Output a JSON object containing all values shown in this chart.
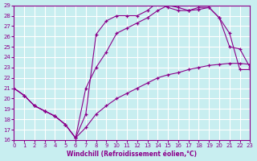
{
  "xlabel": "Windchill (Refroidissement éolien,°C)",
  "ylabel": "",
  "bg_color": "#c8eef0",
  "grid_color": "#ffffff",
  "line_color": "#8b008b",
  "xlim": [
    0,
    23
  ],
  "ylim": [
    16,
    29
  ],
  "xticks": [
    0,
    1,
    2,
    3,
    4,
    5,
    6,
    7,
    8,
    9,
    10,
    11,
    12,
    13,
    14,
    15,
    16,
    17,
    18,
    19,
    20,
    21,
    22,
    23
  ],
  "yticks": [
    16,
    17,
    18,
    19,
    20,
    21,
    22,
    23,
    24,
    25,
    26,
    27,
    28,
    29
  ],
  "line1_x": [
    0,
    1,
    2,
    3,
    4,
    5,
    6,
    7,
    8,
    9,
    10,
    11,
    12,
    13,
    14,
    15,
    16,
    17,
    18,
    19,
    20,
    21,
    22,
    23
  ],
  "line1_y": [
    21.0,
    20.3,
    19.3,
    18.8,
    18.3,
    17.5,
    16.2,
    17.2,
    18.5,
    19.3,
    20.0,
    20.5,
    21.0,
    21.5,
    22.0,
    22.3,
    22.5,
    22.8,
    23.0,
    23.2,
    23.3,
    23.4,
    23.4,
    23.3
  ],
  "line2_x": [
    0,
    1,
    2,
    3,
    4,
    5,
    6,
    7,
    8,
    9,
    10,
    11,
    12,
    13,
    14,
    15,
    16,
    17,
    18,
    19,
    20,
    21,
    22,
    23
  ],
  "line2_y": [
    21.0,
    20.3,
    19.3,
    18.8,
    18.3,
    17.5,
    16.2,
    18.5,
    26.2,
    27.5,
    28.0,
    28.0,
    28.0,
    28.5,
    29.3,
    28.8,
    28.5,
    28.5,
    28.8,
    28.8,
    27.8,
    26.3,
    22.8,
    22.8
  ],
  "line3_x": [
    0,
    1,
    2,
    3,
    4,
    5,
    6,
    7,
    8,
    9,
    10,
    11,
    12,
    13,
    14,
    15,
    16,
    17,
    18,
    19,
    20,
    21,
    22,
    23
  ],
  "line3_y": [
    21.0,
    20.3,
    19.3,
    18.8,
    18.3,
    17.5,
    16.2,
    21.0,
    23.0,
    24.5,
    26.3,
    26.8,
    27.3,
    27.8,
    28.5,
    29.0,
    28.8,
    28.5,
    28.6,
    28.8,
    27.8,
    25.0,
    24.8,
    23.0
  ]
}
